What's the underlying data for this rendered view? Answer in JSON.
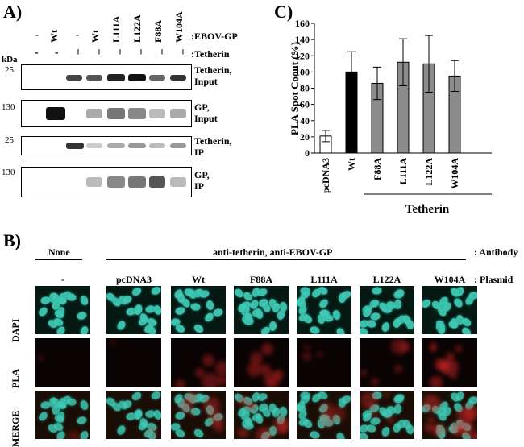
{
  "panel_a": {
    "label": "A)",
    "kda": "kDa",
    "ebov_label": ":EBOV-GP",
    "tetherin_label": ":Tetherin",
    "lanes_gp": [
      "-",
      "Wt",
      "-",
      "Wt",
      "L111A",
      "L122A",
      "F88A",
      "W104A"
    ],
    "lanes_tetherin": [
      "-",
      "-",
      "+",
      "+",
      "+",
      "+",
      "+",
      "+"
    ],
    "blots": [
      {
        "marker": "25",
        "label1": "Tetherin,",
        "label2": "Input"
      },
      {
        "marker": "130",
        "label1": "GP,",
        "label2": "Input"
      },
      {
        "marker": "25",
        "label1": "Tetherin,",
        "label2": "IP"
      },
      {
        "marker": "130",
        "label1": "GP,",
        "label2": "IP"
      }
    ]
  },
  "panel_c": {
    "label": "C)",
    "group_label": "Tetherin",
    "chart_data": {
      "type": "bar",
      "ylabel": "PLA Spot Coout (%)",
      "ylim": [
        0,
        160
      ],
      "yticks": [
        0,
        20,
        40,
        60,
        80,
        100,
        120,
        140,
        160
      ],
      "categories": [
        "pcDNA3",
        "Wt",
        "F88A",
        "L111A",
        "L122A",
        "W104A"
      ],
      "values": [
        21,
        100,
        86,
        112,
        110,
        95
      ],
      "errors": [
        7,
        25,
        20,
        29,
        35,
        19
      ],
      "colors": [
        "#ffffff",
        "#000000",
        "#8c8c8c",
        "#8c8c8c",
        "#8c8c8c",
        "#8c8c8c"
      ]
    }
  },
  "panel_b": {
    "label": "B)",
    "none_label": "None",
    "antibody_group": "anti-tetherin, anti-EBOV-GP",
    "antibody_suffix": ": Antibody",
    "plasmid_suffix": ": Plasmid",
    "columns": [
      "-",
      "pcDNA3",
      "Wt",
      "F88A",
      "L111A",
      "L122A",
      "W104A"
    ],
    "rows": [
      "DAPI",
      "PLA",
      "MERGE"
    ],
    "pla_intensity": [
      0.1,
      0.05,
      0.6,
      0.7,
      0.3,
      0.5,
      0.9
    ]
  }
}
